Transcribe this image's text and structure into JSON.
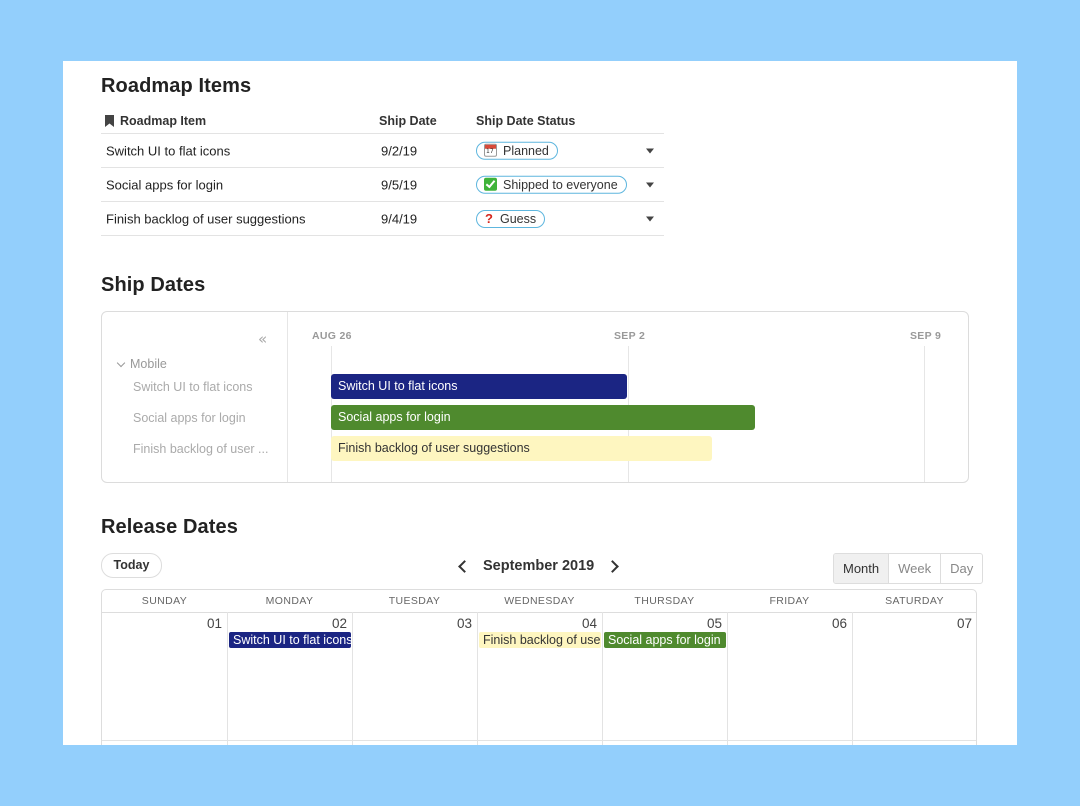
{
  "roadmap": {
    "title": "Roadmap Items",
    "columns": [
      "Roadmap Item",
      "Ship Date",
      "Ship Date Status"
    ],
    "rows": [
      {
        "item": "Switch UI to flat icons",
        "date": "9/2/19",
        "status": "Planned",
        "status_icon": "calendar-icon"
      },
      {
        "item": "Social apps for login",
        "date": "9/5/19",
        "status": "Shipped to everyone",
        "status_icon": "check-icon"
      },
      {
        "item": "Finish backlog of user suggestions",
        "date": "9/4/19",
        "status": "Guess",
        "status_icon": "question-icon"
      }
    ]
  },
  "timeline": {
    "title": "Ship Dates",
    "group": "Mobile",
    "side_items": [
      "Switch UI to flat icons",
      "Social apps for login",
      "Finish backlog of user ..."
    ],
    "date_labels": [
      "AUG 26",
      "SEP 2",
      "SEP 9"
    ],
    "bars": [
      {
        "label": "Switch UI to flat icons",
        "color": "#1b2583",
        "text_color": "#ffffff"
      },
      {
        "label": "Social apps for login",
        "color": "#4f8a2e",
        "text_color": "#ffffff"
      },
      {
        "label": "Finish backlog of user suggestions",
        "color": "#fef6c0",
        "text_color": "#333333"
      }
    ]
  },
  "calendar": {
    "title": "Release Dates",
    "today_label": "Today",
    "month_label": "September 2019",
    "views": [
      "Month",
      "Week",
      "Day"
    ],
    "active_view": "Month",
    "weekdays": [
      "SUNDAY",
      "MONDAY",
      "TUESDAY",
      "WEDNESDAY",
      "THURSDAY",
      "FRIDAY",
      "SATURDAY"
    ],
    "day_numbers": [
      "01",
      "02",
      "03",
      "04",
      "05",
      "06",
      "07"
    ],
    "events": [
      {
        "label": "Switch UI to flat icons",
        "day": "02",
        "color": "#1b2583",
        "text_color": "#ffffff"
      },
      {
        "label": "Finish backlog of user suggestions",
        "day": "04",
        "color": "#fef6c0",
        "text_color": "#333333"
      },
      {
        "label": "Social apps for login",
        "day": "05",
        "color": "#4f8a2e",
        "text_color": "#ffffff"
      }
    ]
  }
}
